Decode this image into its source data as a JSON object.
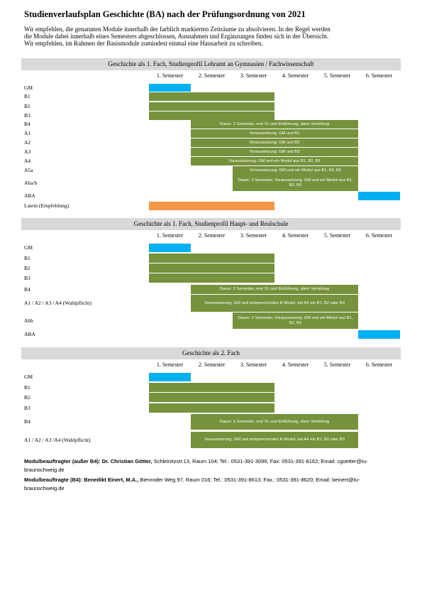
{
  "title": "Studienverlaufsplan Geschichte (BA) nach der Prüfungsordnung von 2021",
  "intro": [
    "Wir empfehlen, die genannten Module innerhalb der farblich markierten Zeiträume zu absolvieren. In der Regel werden",
    "die Module dabei innerhalb eines Semesters abgeschlossen, Ausnahmen und Ergänzungen finden sich in der Übersicht.",
    "Wir empfehlen, im Rahmen der Basismodule zumindest einmal eine Hausarbeit zu schreiben."
  ],
  "sections": [
    {
      "heading": "Geschichte als 1. Fach, Studienprofil Lehramt an Gymnasien / Fachwissenschaft",
      "semesters": [
        "1. Semester",
        "2. Semester",
        "3. Semester",
        "4. Semester",
        "5. Semester",
        "6. Semester"
      ],
      "rows": [
        {
          "label": "GM"
        },
        {
          "label": "B1"
        },
        {
          "label": "B2"
        },
        {
          "label": "B3"
        },
        {
          "label": "B4",
          "bar_text": "Dauer: 2 Semester, erst VL und Einführung, dann Vertiefung"
        },
        {
          "label": "A1",
          "bar_text": "Voraussetzung: GM und B1"
        },
        {
          "label": "A2",
          "bar_text": "Voraussetzung: GM und B2"
        },
        {
          "label": "A3",
          "bar_text": "Voraussetzung: GM und B3"
        },
        {
          "label": "A4",
          "bar_text": "Voraussetzung: GM und ein Modul aus B1, B2, B3"
        },
        {
          "label": "A5a",
          "bar_text": "Voraussetzung: GM und ein Modul aus B1, B2, B3"
        },
        {
          "label": "A6a/b",
          "bar_text": "Dauer: 2 Semester; Voraussetzung: GM und ein Modul aus B1, B2, B3"
        },
        {
          "label": "ABA"
        },
        {
          "label": "Latein (Empfehlung)"
        }
      ]
    },
    {
      "heading": "Geschichte als 1. Fach, Studienprofil Haupt- und Realschule",
      "semesters": [
        "1. Semester",
        "2. Semester",
        "3. Semester",
        "4. Semester",
        "5. Semester",
        "6. Semester"
      ],
      "rows": [
        {
          "label": "GM"
        },
        {
          "label": "B1"
        },
        {
          "label": "B2"
        },
        {
          "label": "B3"
        },
        {
          "label": "B4",
          "bar_text": "Dauer: 2 Semester, erst VL und Einführung, dann Vertiefung"
        },
        {
          "label": "A1 / A2 / A3 / A4 (Wahlpflicht)",
          "bar_text": "Voraussetzung: GM und entsprechendes B-Modul, bei A4 ein B1, B2 oder B3"
        },
        {
          "label": "A6b",
          "bar_text": "Dauer: 2 Semester, Voraussetzung: GM und ein Modul aus B1, B2, B3"
        },
        {
          "label": "ABA"
        }
      ]
    },
    {
      "heading": "Geschichte als 2. Fach",
      "semesters": [
        "1. Semester",
        "2. Semester",
        "3. Semester",
        "4. Semester",
        "5. Semester",
        "6. Semester"
      ],
      "rows": [
        {
          "label": "GM"
        },
        {
          "label": "B1"
        },
        {
          "label": "B2"
        },
        {
          "label": "B3"
        },
        {
          "label": "B4",
          "bar_text": "Dauer: 2 Semester, erst VL und Einführung, dann Vertiefung"
        },
        {
          "label": "A1 / A2 / A3 /A4 (Wahlpflicht)",
          "bar_text": "Voraussetzung: GM und entsprechendes B-Modul, bei A4 ein B1, B2 oder B3"
        }
      ]
    }
  ],
  "contacts": [
    {
      "role": "Modulbeauftragter (außer B4):",
      "name": "Dr. Christian Götter,",
      "details": "Schleinitzstr.13, Raum 104; Tel.: 0531-391-3096; Fax: 0531-391-8162; Email: cgoetter@tu-braunschweig.de"
    },
    {
      "role": "Modulbeauftragte (B4):",
      "name": "Benedikt Einert, M.A.,",
      "details": "Bienroder Weg 97, Raum 016; Tel.: 0531-391-8613; Fax.: 0531-391-8620; Email: beinert@tu-braunschweig.de"
    }
  ]
}
